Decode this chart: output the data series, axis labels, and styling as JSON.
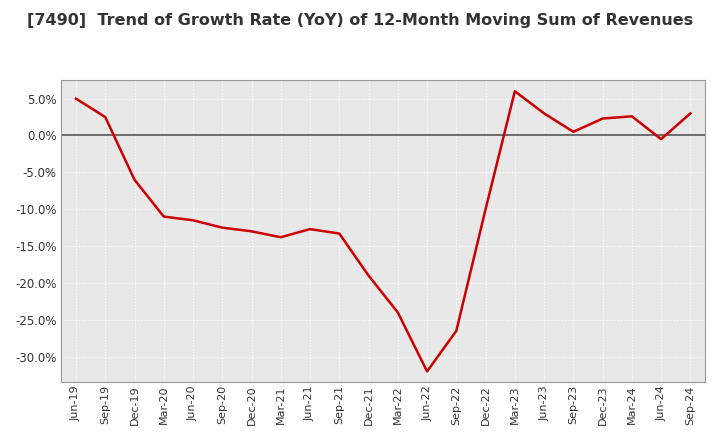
{
  "title": "[7490]  Trend of Growth Rate (YoY) of 12-Month Moving Sum of Revenues",
  "title_fontsize": 11.5,
  "line_color": "#cc0000",
  "background_color": "#ffffff",
  "plot_bg_color": "#e8e8e8",
  "grid_color": "#ffffff",
  "ylim": [
    -0.335,
    0.075
  ],
  "yticks": [
    0.05,
    0.0,
    -0.05,
    -0.1,
    -0.15,
    -0.2,
    -0.25,
    -0.3
  ],
  "x_labels": [
    "Jun-19",
    "Sep-19",
    "Dec-19",
    "Mar-20",
    "Jun-20",
    "Sep-20",
    "Dec-20",
    "Mar-21",
    "Jun-21",
    "Sep-21",
    "Dec-21",
    "Mar-22",
    "Jun-22",
    "Sep-22",
    "Dec-22",
    "Mar-23",
    "Jun-23",
    "Sep-23",
    "Dec-23",
    "Mar-24",
    "Jun-24",
    "Sep-24"
  ],
  "y_values": [
    0.05,
    0.025,
    -0.06,
    -0.11,
    -0.115,
    -0.125,
    -0.13,
    -0.138,
    -0.127,
    -0.133,
    -0.19,
    -0.24,
    -0.32,
    -0.265,
    -0.1,
    0.06,
    0.03,
    0.005,
    0.023,
    0.026,
    -0.005,
    0.03
  ]
}
